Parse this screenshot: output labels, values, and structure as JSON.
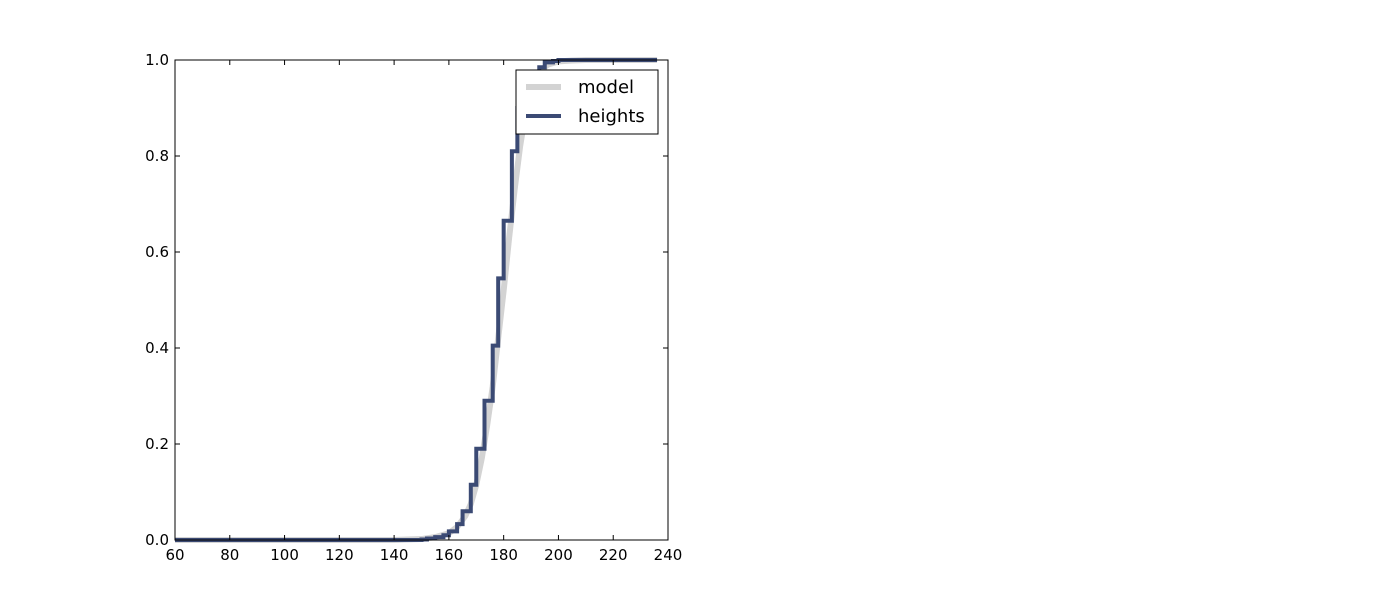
{
  "chart_data": {
    "type": "line",
    "title": "",
    "xlabel": "",
    "ylabel": "",
    "xlim": [
      60,
      240
    ],
    "ylim": [
      0.0,
      1.0
    ],
    "xticks": [
      60,
      80,
      100,
      120,
      140,
      160,
      180,
      200,
      220,
      240
    ],
    "yticks": [
      0.0,
      0.2,
      0.4,
      0.6,
      0.8,
      1.0
    ],
    "xtick_labels": [
      "60",
      "80",
      "100",
      "120",
      "140",
      "160",
      "180",
      "200",
      "220",
      "240"
    ],
    "ytick_labels": [
      "0.0",
      "0.2",
      "0.4",
      "0.6",
      "0.8",
      "1.0"
    ],
    "grid": false,
    "legend_position": "top-right",
    "series": [
      {
        "name": "model",
        "style": "smooth",
        "color": "#d3d3d3",
        "x": [
          60,
          140,
          150,
          155,
          160,
          163,
          166,
          168,
          170,
          172,
          174,
          176,
          178,
          180,
          182,
          184,
          186,
          188,
          190,
          193,
          196,
          200,
          205,
          210,
          236
        ],
        "y": [
          0.0,
          0.0,
          0.002,
          0.006,
          0.014,
          0.027,
          0.05,
          0.075,
          0.115,
          0.17,
          0.24,
          0.32,
          0.42,
          0.52,
          0.63,
          0.73,
          0.82,
          0.89,
          0.94,
          0.975,
          0.99,
          0.997,
          0.999,
          1.0,
          1.0
        ]
      },
      {
        "name": "heights",
        "style": "step",
        "color": "#3b4a74",
        "x": [
          60,
          150,
          152,
          155,
          158,
          160,
          163,
          165,
          168,
          170,
          173,
          176,
          178,
          180,
          183,
          185,
          188,
          190,
          193,
          195,
          198,
          200,
          203,
          205,
          236
        ],
        "y": [
          0.0,
          0.001,
          0.003,
          0.006,
          0.01,
          0.018,
          0.033,
          0.06,
          0.115,
          0.19,
          0.29,
          0.405,
          0.545,
          0.665,
          0.81,
          0.9,
          0.955,
          0.97,
          0.985,
          0.995,
          0.998,
          1.0,
          1.0,
          1.0,
          1.0
        ]
      }
    ]
  }
}
